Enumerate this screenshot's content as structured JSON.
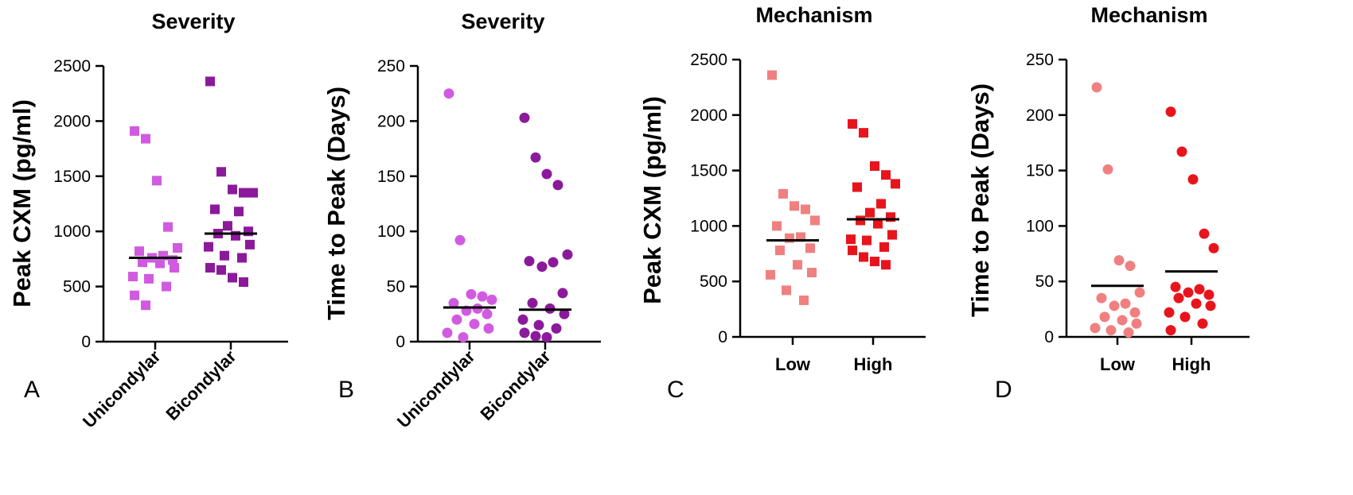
{
  "chart_data": [
    {
      "type": "scatter",
      "panel_label": "A",
      "title": "Severity",
      "ylabel": "Peak CXM (pg/ml)",
      "ylim": [
        0,
        2500
      ],
      "yticks": [
        "0",
        "500",
        "1000",
        "1500",
        "2000",
        "2500"
      ],
      "marker": "square",
      "categories": [
        "Unicondylar",
        "Bicondylar"
      ],
      "series": [
        {
          "name": "Unicondylar",
          "color": "#d15be0",
          "mean": 760,
          "values": [
            1910,
            1840,
            1460,
            1040,
            850,
            820,
            780,
            760,
            740,
            720,
            710,
            670,
            590,
            570,
            500,
            420,
            330
          ]
        },
        {
          "name": "Bicondylar",
          "color": "#8b1a9b",
          "mean": 980,
          "values": [
            2360,
            1540,
            1380,
            1350,
            1350,
            1200,
            1180,
            1050,
            1000,
            980,
            960,
            880,
            860,
            780,
            760,
            670,
            650,
            580,
            540
          ]
        }
      ]
    },
    {
      "type": "scatter",
      "panel_label": "B",
      "title": "Severity",
      "ylabel": "Time to Peak (Days)",
      "ylim": [
        0,
        250
      ],
      "yticks": [
        "0",
        "50",
        "100",
        "150",
        "200",
        "250"
      ],
      "marker": "circle",
      "categories": [
        "Unicondylar",
        "Bicondylar"
      ],
      "series": [
        {
          "name": "Unicondylar",
          "color": "#d15be0",
          "mean": 31,
          "values": [
            225,
            92,
            43,
            41,
            38,
            35,
            30,
            28,
            25,
            20,
            16,
            12,
            8,
            4
          ]
        },
        {
          "name": "Bicondylar",
          "color": "#8b1a9b",
          "mean": 29,
          "values": [
            203,
            167,
            152,
            142,
            79,
            73,
            72,
            68,
            44,
            35,
            30,
            25,
            20,
            15,
            12,
            8,
            5,
            4
          ]
        }
      ]
    },
    {
      "type": "scatter",
      "panel_label": "C",
      "title": "Mechanism",
      "ylabel": "Peak CXM (pg/ml)",
      "ylim": [
        0,
        2500
      ],
      "yticks": [
        "0",
        "500",
        "1000",
        "1500",
        "2000",
        "2500"
      ],
      "marker": "square",
      "categories": [
        "Low",
        "High"
      ],
      "series": [
        {
          "name": "Low",
          "color": "#f08080",
          "mean": 870,
          "values": [
            2360,
            1290,
            1180,
            1150,
            1050,
            1000,
            900,
            890,
            800,
            780,
            650,
            580,
            560,
            420,
            330
          ]
        },
        {
          "name": "High",
          "color": "#e8141c",
          "mean": 1060,
          "values": [
            1920,
            1840,
            1540,
            1460,
            1380,
            1350,
            1200,
            1120,
            1080,
            1050,
            1020,
            920,
            880,
            870,
            810,
            780,
            720,
            680,
            650
          ]
        }
      ]
    },
    {
      "type": "scatter",
      "panel_label": "D",
      "title": "Mechanism",
      "ylabel": "Time to Peak (Days)",
      "ylim": [
        0,
        250
      ],
      "yticks": [
        "0",
        "50",
        "100",
        "150",
        "200",
        "250"
      ],
      "marker": "circle",
      "categories": [
        "Low",
        "High"
      ],
      "series": [
        {
          "name": "Low",
          "color": "#f08080",
          "mean": 46,
          "values": [
            225,
            151,
            69,
            64,
            40,
            35,
            30,
            28,
            22,
            18,
            15,
            12,
            8,
            6,
            4
          ]
        },
        {
          "name": "High",
          "color": "#e8141c",
          "mean": 59,
          "values": [
            203,
            167,
            142,
            93,
            80,
            45,
            43,
            40,
            38,
            35,
            30,
            28,
            22,
            18,
            12,
            6
          ]
        }
      ]
    }
  ]
}
